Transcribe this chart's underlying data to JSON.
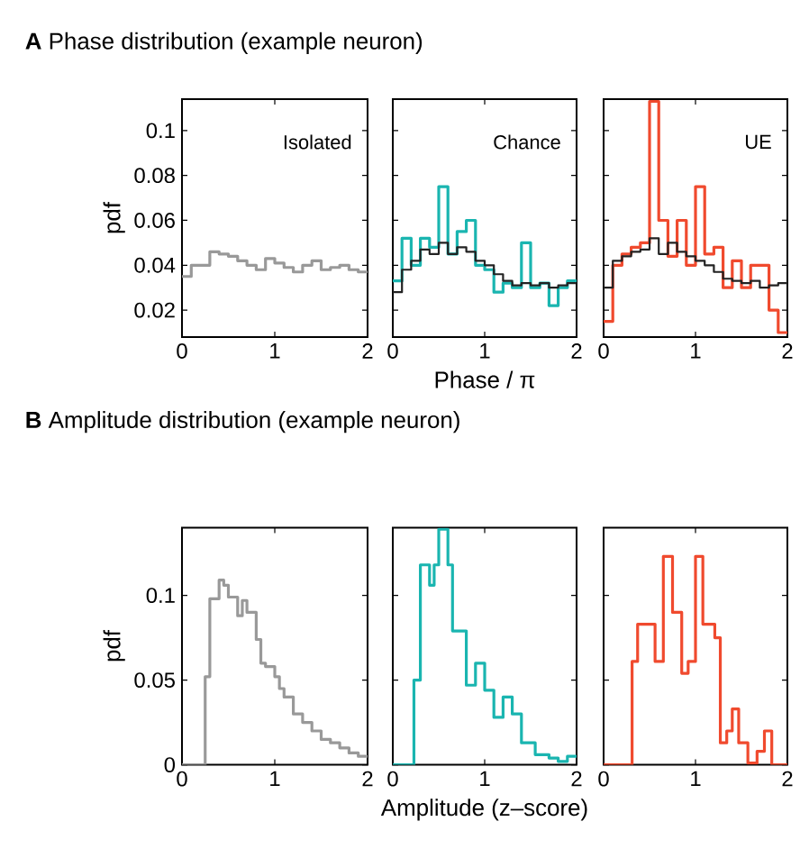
{
  "chart_data": [
    {
      "type": "step",
      "title": "**A** Phase distribution (example neuron)",
      "ylabel": "pdf",
      "annotations": [
        "Isolated"
      ],
      "xlim": [
        0,
        2
      ],
      "xticks": [
        0,
        1,
        2
      ],
      "ylim": [
        0.008,
        0.114
      ],
      "yticks": [
        0.02,
        0.04,
        0.06,
        0.08,
        0.1
      ],
      "series": [
        {
          "color": "#999999",
          "x": [
            0,
            0.1,
            0.2,
            0.3,
            0.4,
            0.5,
            0.6,
            0.7,
            0.8,
            0.9,
            1.0,
            1.1,
            1.2,
            1.3,
            1.4,
            1.5,
            1.6,
            1.7,
            1.8,
            1.9,
            2
          ],
          "values": [
            0.035,
            0.04,
            0.04,
            0.046,
            0.045,
            0.044,
            0.042,
            0.04,
            0.038,
            0.043,
            0.041,
            0.039,
            0.037,
            0.04,
            0.042,
            0.038,
            0.039,
            0.04,
            0.038,
            0.037,
            0.037
          ]
        }
      ]
    },
    {
      "type": "step",
      "xlabel": "Phase / π",
      "annotations": [
        "Chance"
      ],
      "tick_labels": "x",
      "xlim": [
        0,
        2
      ],
      "xticks": [
        0,
        1,
        2
      ],
      "ylim": [
        0.008,
        0.114
      ],
      "yticks": [
        0.02,
        0.04,
        0.06,
        0.08,
        0.1
      ],
      "series": [
        {
          "color": "#1ab5b0",
          "x": [
            0,
            0.1,
            0.2,
            0.3,
            0.4,
            0.5,
            0.6,
            0.7,
            0.8,
            0.9,
            1.0,
            1.1,
            1.2,
            1.3,
            1.4,
            1.5,
            1.6,
            1.7,
            1.8,
            1.9,
            2
          ],
          "values": [
            0.033,
            0.052,
            0.04,
            0.052,
            0.048,
            0.075,
            0.045,
            0.055,
            0.06,
            0.04,
            0.038,
            0.028,
            0.032,
            0.03,
            0.05,
            0.03,
            0.032,
            0.022,
            0.03,
            0.033,
            0.033
          ]
        },
        {
          "color": "#222222",
          "x": [
            0,
            0.1,
            0.2,
            0.3,
            0.4,
            0.5,
            0.6,
            0.7,
            0.8,
            0.9,
            1.0,
            1.1,
            1.2,
            1.3,
            1.4,
            1.5,
            1.6,
            1.7,
            1.8,
            1.9,
            2
          ],
          "values": [
            0.028,
            0.038,
            0.042,
            0.047,
            0.045,
            0.05,
            0.045,
            0.048,
            0.046,
            0.042,
            0.04,
            0.036,
            0.033,
            0.031,
            0.032,
            0.031,
            0.032,
            0.03,
            0.031,
            0.032,
            0.032
          ]
        }
      ]
    },
    {
      "type": "step",
      "annotations": [
        "UE"
      ],
      "tick_labels": "x",
      "xlim": [
        0,
        2
      ],
      "xticks": [
        0,
        1,
        2
      ],
      "ylim": [
        0.008,
        0.114
      ],
      "yticks": [
        0.02,
        0.04,
        0.06,
        0.08,
        0.1
      ],
      "series": [
        {
          "color": "#f04a2e",
          "x": [
            0,
            0.1,
            0.2,
            0.3,
            0.4,
            0.5,
            0.6,
            0.7,
            0.8,
            0.9,
            1.0,
            1.1,
            1.2,
            1.3,
            1.4,
            1.5,
            1.6,
            1.7,
            1.8,
            1.9,
            2
          ],
          "values": [
            0.015,
            0.04,
            0.045,
            0.048,
            0.05,
            0.113,
            0.06,
            0.044,
            0.06,
            0.04,
            0.075,
            0.045,
            0.048,
            0.03,
            0.042,
            0.03,
            0.04,
            0.04,
            0.02,
            0.01,
            0.01
          ]
        },
        {
          "color": "#222222",
          "x": [
            0,
            0.1,
            0.2,
            0.3,
            0.4,
            0.5,
            0.6,
            0.7,
            0.8,
            0.9,
            1.0,
            1.1,
            1.2,
            1.3,
            1.4,
            1.5,
            1.6,
            1.7,
            1.8,
            1.9,
            2
          ],
          "values": [
            0.03,
            0.042,
            0.044,
            0.046,
            0.047,
            0.052,
            0.045,
            0.05,
            0.046,
            0.044,
            0.042,
            0.04,
            0.037,
            0.034,
            0.033,
            0.032,
            0.033,
            0.03,
            0.031,
            0.032,
            0.032
          ]
        }
      ]
    },
    {
      "type": "step",
      "title": "**B** Amplitude distribution (example neuron)",
      "ylabel": "pdf",
      "xlim": [
        0,
        2
      ],
      "xticks": [
        0,
        1,
        2
      ],
      "ylim": [
        0,
        0.14
      ],
      "yticks": [
        0,
        0.05,
        0.1
      ],
      "series": [
        {
          "color": "#999999",
          "x": [
            0,
            0.25,
            0.3,
            0.4,
            0.45,
            0.5,
            0.6,
            0.65,
            0.7,
            0.8,
            0.85,
            0.9,
            1.0,
            1.05,
            1.1,
            1.2,
            1.3,
            1.4,
            1.5,
            1.6,
            1.7,
            1.8,
            1.9,
            2
          ],
          "values": [
            0,
            0.052,
            0.098,
            0.109,
            0.106,
            0.099,
            0.088,
            0.097,
            0.09,
            0.074,
            0.06,
            0.058,
            0.052,
            0.045,
            0.04,
            0.03,
            0.025,
            0.02,
            0.015,
            0.013,
            0.01,
            0.007,
            0.005,
            0.005
          ]
        }
      ]
    },
    {
      "type": "step",
      "xlabel": "Amplitude (z–score)",
      "tick_labels": "x",
      "xlim": [
        0,
        2
      ],
      "xticks": [
        0,
        1,
        2
      ],
      "ylim": [
        0,
        0.14
      ],
      "yticks": [
        0,
        0.05,
        0.1
      ],
      "series": [
        {
          "color": "#1ab5b0",
          "x": [
            0,
            0.23,
            0.3,
            0.4,
            0.45,
            0.5,
            0.6,
            0.65,
            0.8,
            0.9,
            1.0,
            1.1,
            1.2,
            1.3,
            1.4,
            1.55,
            1.7,
            1.8,
            1.9,
            2
          ],
          "values": [
            0,
            0.05,
            0.118,
            0.106,
            0.118,
            0.139,
            0.118,
            0.079,
            0.047,
            0.06,
            0.044,
            0.028,
            0.04,
            0.03,
            0.013,
            0.006,
            0.004,
            0.002,
            0.005,
            0.005
          ]
        }
      ]
    },
    {
      "type": "step",
      "tick_labels": "x",
      "xlim": [
        0,
        2
      ],
      "xticks": [
        0,
        1,
        2
      ],
      "ylim": [
        0,
        0.14
      ],
      "yticks": [
        0,
        0.05,
        0.1
      ],
      "series": [
        {
          "color": "#f04a2e",
          "x": [
            0,
            0.31,
            0.37,
            0.56,
            0.65,
            0.75,
            0.85,
            0.92,
            1.0,
            1.08,
            1.21,
            1.27,
            1.34,
            1.4,
            1.47,
            1.57,
            1.67,
            1.75,
            1.83,
            2
          ],
          "values": [
            0,
            0.061,
            0.083,
            0.061,
            0.123,
            0.09,
            0.054,
            0.061,
            0.123,
            0.083,
            0.075,
            0.013,
            0.02,
            0.033,
            0.013,
            0.001,
            0.008,
            0.02,
            0,
            0
          ]
        }
      ]
    }
  ]
}
